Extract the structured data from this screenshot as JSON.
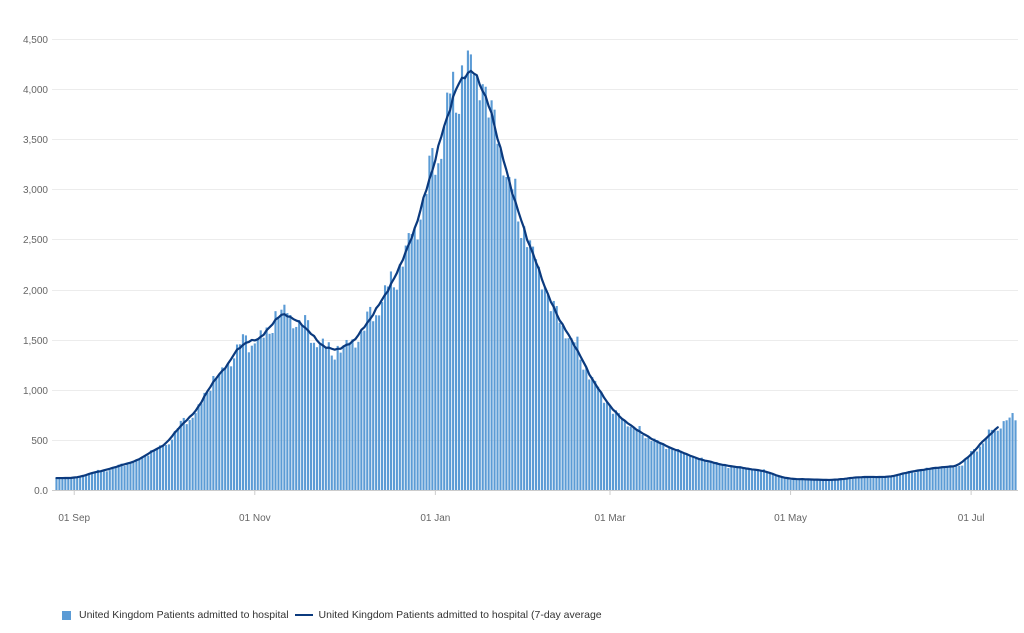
{
  "chart_data": {
    "type": "bar",
    "start_date": "2020-08-26",
    "end_date": "2021-07-16",
    "y_ticks": [
      "0.0",
      "500",
      "1,000",
      "1,500",
      "2,000",
      "2,500",
      "3,000",
      "3,500",
      "4,000",
      "4,500"
    ],
    "ylim": [
      0,
      4500
    ],
    "x_ticks": [
      {
        "date": "2020-09-01",
        "label": "01 Sep"
      },
      {
        "date": "2020-11-01",
        "label": "01 Nov"
      },
      {
        "date": "2021-01-01",
        "label": "01 Jan"
      },
      {
        "date": "2021-03-01",
        "label": "01 Mar"
      },
      {
        "date": "2021-05-01",
        "label": "01 May"
      },
      {
        "date": "2021-07-01",
        "label": "01 Jul"
      }
    ],
    "grid": true,
    "legend_position": "bottom-left",
    "series": [
      {
        "name": "United Kingdom Patients admitted to hospital",
        "kind": "bar",
        "color": "#5b9bd5"
      },
      {
        "name": "United Kingdom Patients admitted to hospital (7-day average",
        "kind": "line",
        "color": "#0b3a7e"
      }
    ],
    "anchors": [
      [
        "2020-08-26",
        120
      ],
      [
        "2020-09-01",
        120
      ],
      [
        "2020-09-10",
        190
      ],
      [
        "2020-09-20",
        270
      ],
      [
        "2020-09-30",
        420
      ],
      [
        "2020-10-10",
        720
      ],
      [
        "2020-10-20",
        1150
      ],
      [
        "2020-10-28",
        1470
      ],
      [
        "2020-11-03",
        1510
      ],
      [
        "2020-11-10",
        1780
      ],
      [
        "2020-11-17",
        1660
      ],
      [
        "2020-11-24",
        1430
      ],
      [
        "2020-11-29",
        1390
      ],
      [
        "2020-12-05",
        1500
      ],
      [
        "2020-12-12",
        1800
      ],
      [
        "2020-12-19",
        2150
      ],
      [
        "2020-12-25",
        2600
      ],
      [
        "2021-01-01",
        3300
      ],
      [
        "2021-01-07",
        3950
      ],
      [
        "2021-01-12",
        4230
      ],
      [
        "2021-01-16",
        4120
      ],
      [
        "2021-01-21",
        3650
      ],
      [
        "2021-01-27",
        2950
      ],
      [
        "2021-02-03",
        2350
      ],
      [
        "2021-02-10",
        1800
      ],
      [
        "2021-02-17",
        1450
      ],
      [
        "2021-02-24",
        1050
      ],
      [
        "2021-03-03",
        760
      ],
      [
        "2021-03-10",
        600
      ],
      [
        "2021-03-17",
        480
      ],
      [
        "2021-03-24",
        390
      ],
      [
        "2021-04-01",
        300
      ],
      [
        "2021-04-10",
        240
      ],
      [
        "2021-04-20",
        200
      ],
      [
        "2021-05-01",
        110
      ],
      [
        "2021-05-15",
        100
      ],
      [
        "2021-05-25",
        130
      ],
      [
        "2021-06-03",
        130
      ],
      [
        "2021-06-12",
        190
      ],
      [
        "2021-06-20",
        225
      ],
      [
        "2021-06-27",
        240
      ],
      [
        "2021-07-03",
        420
      ],
      [
        "2021-07-09",
        610
      ],
      [
        "2021-07-16",
        740
      ]
    ],
    "line_end_date": "2021-07-10"
  }
}
